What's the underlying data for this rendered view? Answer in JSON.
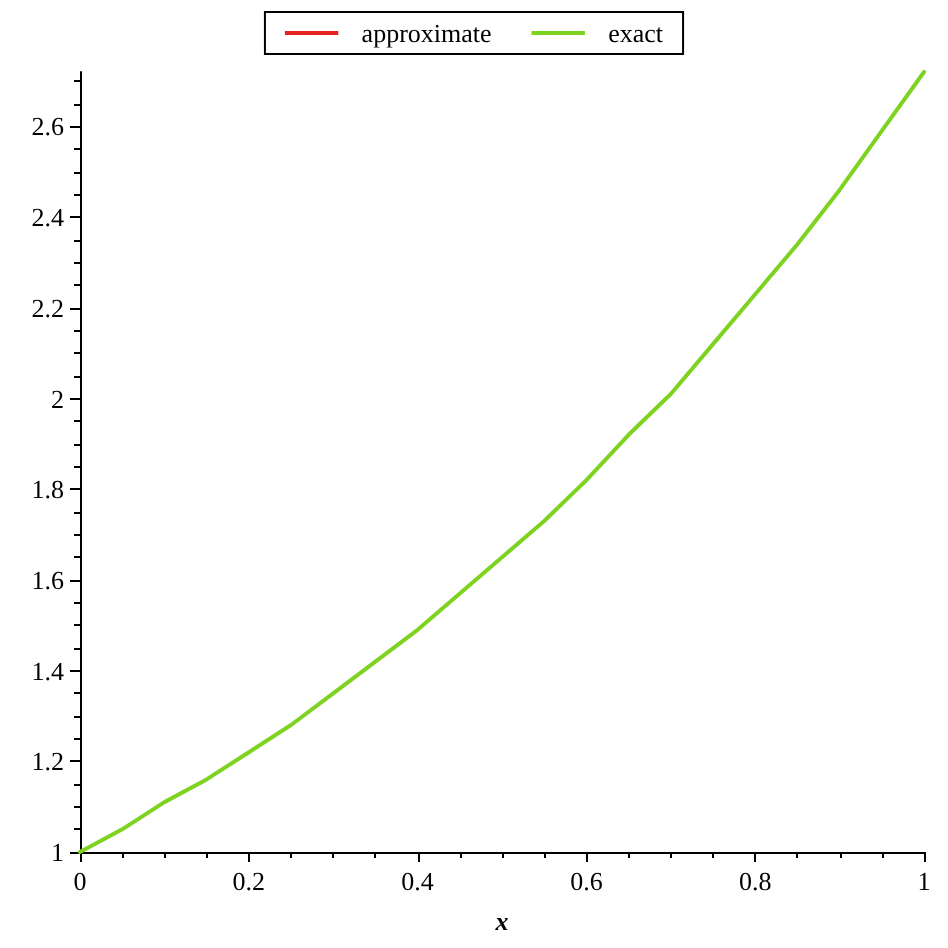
{
  "chart_data": {
    "type": "line",
    "xlabel": "x",
    "x": [
      0,
      0.05,
      0.1,
      0.15,
      0.2,
      0.25,
      0.3,
      0.35,
      0.4,
      0.45,
      0.5,
      0.55,
      0.6,
      0.65,
      0.7,
      0.75,
      0.8,
      0.85,
      0.9,
      0.95,
      1
    ],
    "series": [
      {
        "name": "approximate",
        "color": "#e8221c",
        "values": [
          null,
          null,
          null,
          null,
          null,
          null,
          null,
          null,
          null,
          null,
          null,
          null,
          null,
          null,
          null,
          null,
          null,
          null,
          null,
          null,
          null
        ]
      },
      {
        "name": "exact",
        "color": "#7ed321",
        "values": [
          1,
          1.05,
          1.11,
          1.16,
          1.22,
          1.28,
          1.35,
          1.42,
          1.49,
          1.57,
          1.65,
          1.73,
          1.82,
          1.92,
          2.01,
          2.12,
          2.23,
          2.34,
          2.46,
          2.59,
          2.72
        ]
      }
    ],
    "xlim": [
      0,
      1
    ],
    "xticks": [
      0,
      0.2,
      0.4,
      0.6,
      0.8,
      1
    ],
    "ylim": [
      1,
      2.72
    ],
    "yticks": [
      1,
      1.2,
      1.4,
      1.6,
      1.8,
      2,
      2.2,
      2.4,
      2.6
    ],
    "grid": false,
    "legend": "top",
    "marker": "none",
    "line_style": "solid"
  }
}
